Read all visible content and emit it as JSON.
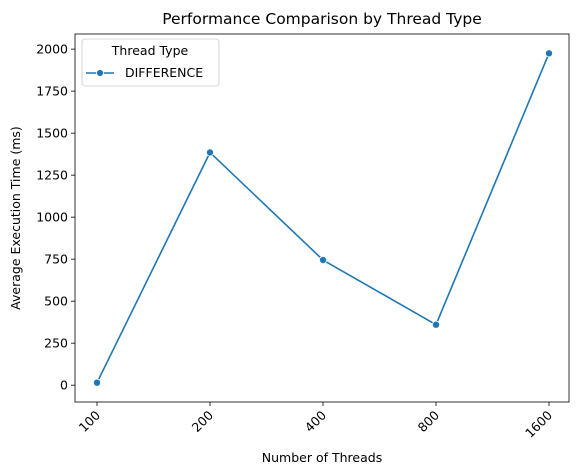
{
  "chart_data": {
    "type": "line",
    "title": "Performance Comparison by Thread Type",
    "xlabel": "Number of Threads",
    "ylabel": "Average Execution Time (ms)",
    "categories": [
      "100",
      "200",
      "400",
      "800",
      "1600"
    ],
    "series": [
      {
        "name": "DIFFERENCE",
        "color": "#1f77b4",
        "values": [
          15,
          1385,
          745,
          360,
          1975
        ]
      }
    ],
    "ylim": [
      -100,
      2090
    ],
    "yticks": [
      0,
      250,
      500,
      750,
      1000,
      1250,
      1500,
      1750,
      2000
    ],
    "grid": false,
    "legend": {
      "title": "Thread Type",
      "placement": "top-left"
    },
    "xtick_rotation": -45
  }
}
